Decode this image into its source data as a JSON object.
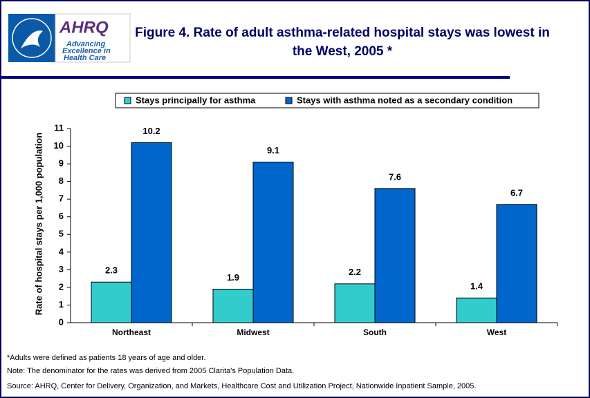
{
  "logo": {
    "name": "AHRQ",
    "tagline": [
      "Advancing",
      "Excellence in",
      "Health Care"
    ]
  },
  "chart_data": {
    "type": "bar",
    "title": "Figure 4. Rate of adult asthma-related hospital stays was lowest in the West, 2005 *",
    "ylabel": "Rate of hospital stays per 1,000 population",
    "categories": [
      "Northeast",
      "Midwest",
      "South",
      "West"
    ],
    "series": [
      {
        "name": "Stays principally for asthma",
        "color": "#33cccc",
        "values": [
          2.3,
          1.9,
          2.2,
          1.4
        ]
      },
      {
        "name": "Stays with asthma noted as a secondary condition",
        "color": "#0066cc",
        "values": [
          10.2,
          9.1,
          7.6,
          6.7
        ]
      }
    ],
    "ylim": [
      0,
      11
    ],
    "yticks": [
      0,
      1,
      2,
      3,
      4,
      5,
      6,
      7,
      8,
      9,
      10,
      11
    ],
    "grid": false,
    "legend": "top",
    "notes": [
      "*Adults were defined as patients 18 years of age and older.",
      "Note: The denominator for the rates was derived from 2005 Clarita's Population Data.",
      "Source: AHRQ, Center for Delivery, Organization, and Markets, Healthcare Cost and Utilization Project, Nationwide Inpatient Sample, 2005."
    ]
  }
}
